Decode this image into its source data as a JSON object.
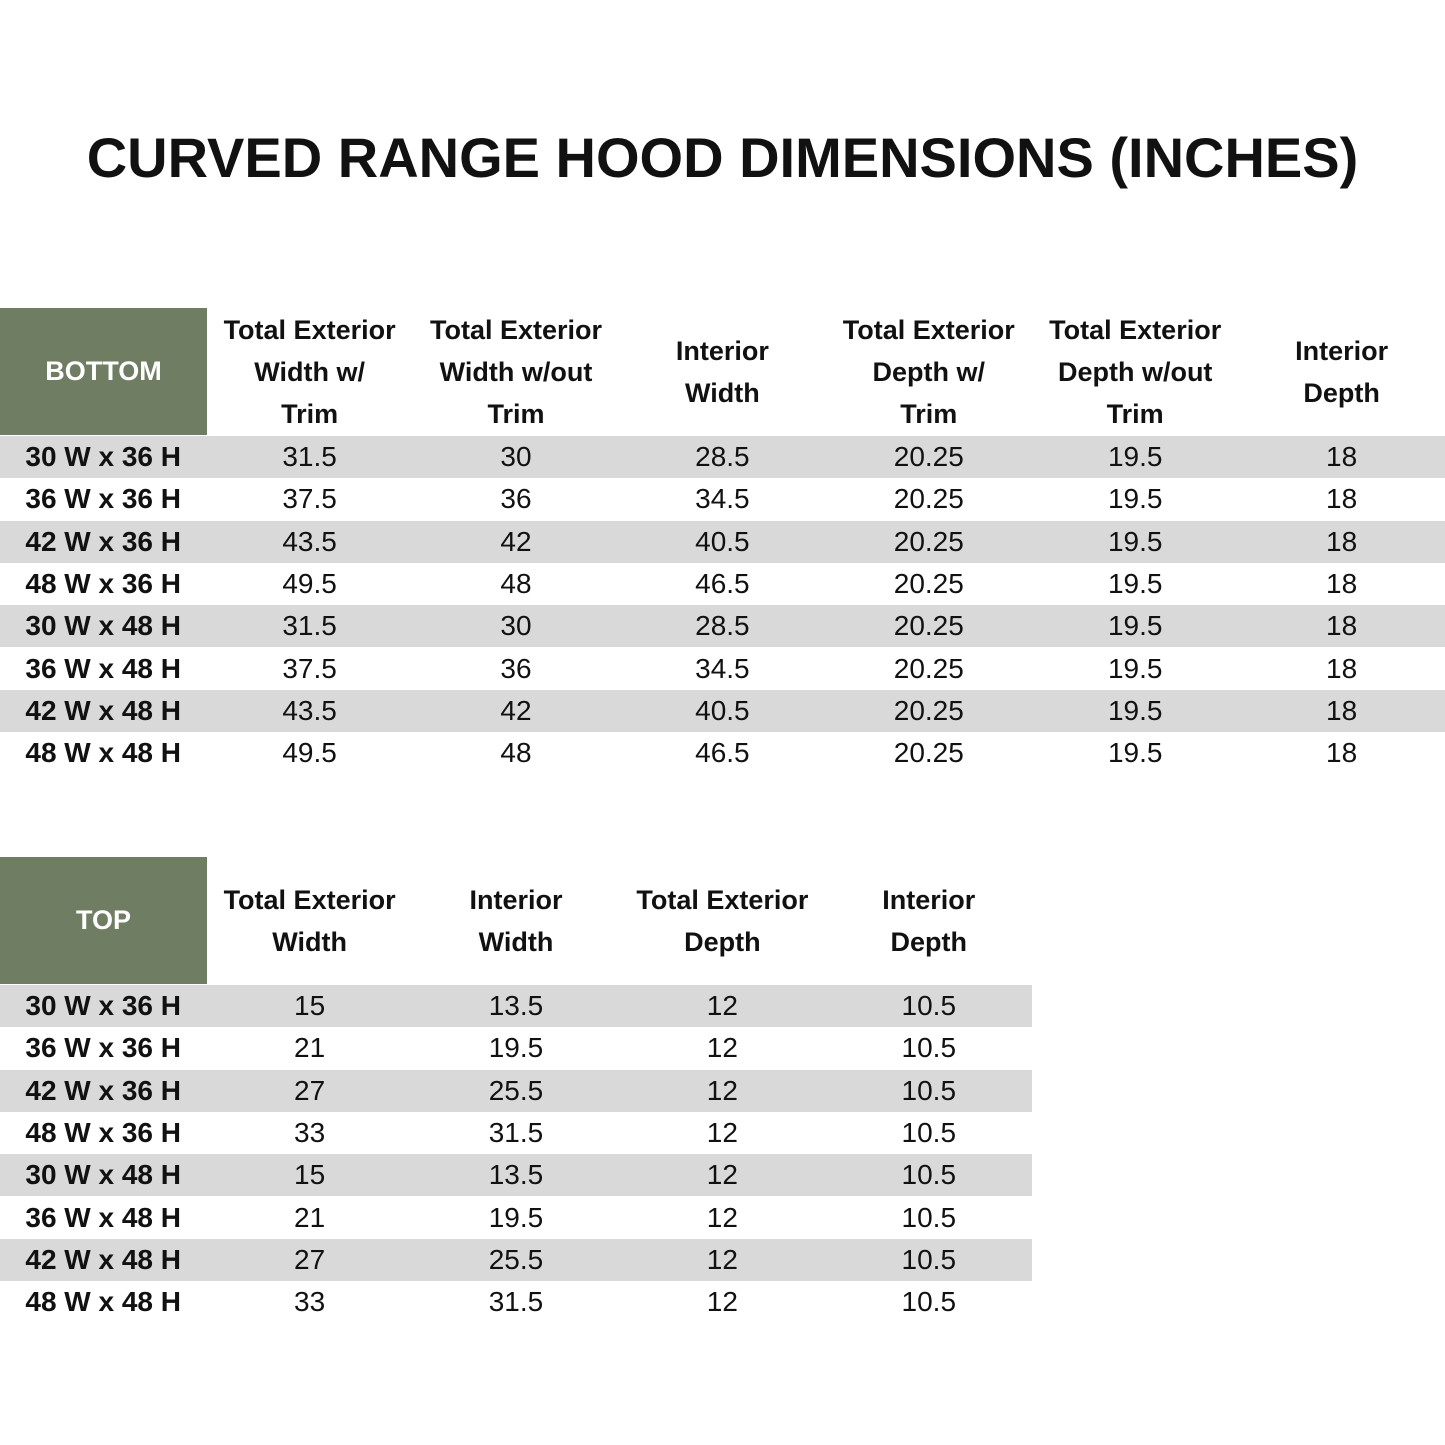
{
  "title": "CURVED RANGE HOOD DIMENSIONS (INCHES)",
  "bottom": {
    "label": "BOTTOM",
    "headers": [
      [
        "Total Exterior",
        "Width w/",
        "Trim"
      ],
      [
        "Total Exterior",
        "Width w/out",
        "Trim"
      ],
      [
        "Interior",
        "Width"
      ],
      [
        "Total Exterior",
        "Depth w/",
        "Trim"
      ],
      [
        "Total Exterior",
        "Depth w/out",
        "Trim"
      ],
      [
        "Interior",
        "Depth"
      ]
    ],
    "rows": [
      [
        "30 W x 36 H",
        "31.5",
        "30",
        "28.5",
        "20.25",
        "19.5",
        "18"
      ],
      [
        "36 W x 36 H",
        "37.5",
        "36",
        "34.5",
        "20.25",
        "19.5",
        "18"
      ],
      [
        "42 W x 36 H",
        "43.5",
        "42",
        "40.5",
        "20.25",
        "19.5",
        "18"
      ],
      [
        "48 W x 36 H",
        "49.5",
        "48",
        "46.5",
        "20.25",
        "19.5",
        "18"
      ],
      [
        "30 W x 48 H",
        "31.5",
        "30",
        "28.5",
        "20.25",
        "19.5",
        "18"
      ],
      [
        "36 W x 48 H",
        "37.5",
        "36",
        "34.5",
        "20.25",
        "19.5",
        "18"
      ],
      [
        "42 W x 48 H",
        "43.5",
        "42",
        "40.5",
        "20.25",
        "19.5",
        "18"
      ],
      [
        "48 W x 48 H",
        "49.5",
        "48",
        "46.5",
        "20.25",
        "19.5",
        "18"
      ]
    ]
  },
  "top": {
    "label": "TOP",
    "headers": [
      [
        "Total Exterior",
        "Width"
      ],
      [
        "Interior",
        "Width"
      ],
      [
        "Total Exterior",
        "Depth"
      ],
      [
        "Interior",
        "Depth"
      ]
    ],
    "rows": [
      [
        "30 W x 36 H",
        "15",
        "13.5",
        "12",
        "10.5"
      ],
      [
        "36 W x 36 H",
        "21",
        "19.5",
        "12",
        "10.5"
      ],
      [
        "42 W x 36 H",
        "27",
        "25.5",
        "12",
        "10.5"
      ],
      [
        "48 W x 36 H",
        "33",
        "31.5",
        "12",
        "10.5"
      ],
      [
        "30 W x 48 H",
        "15",
        "13.5",
        "12",
        "10.5"
      ],
      [
        "36 W x 48 H",
        "21",
        "19.5",
        "12",
        "10.5"
      ],
      [
        "42 W x 48 H",
        "27",
        "25.5",
        "12",
        "10.5"
      ],
      [
        "48 W x 48 H",
        "33",
        "31.5",
        "12",
        "10.5"
      ]
    ]
  }
}
